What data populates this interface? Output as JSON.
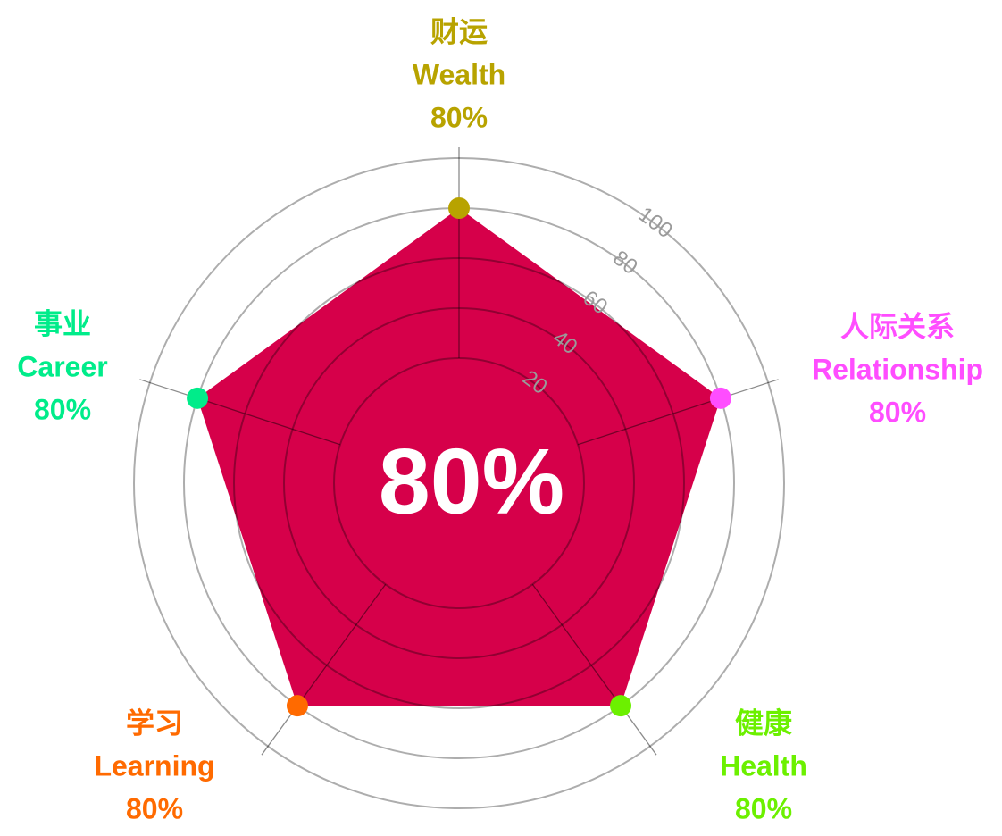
{
  "chart_data": {
    "type": "radar",
    "categories": [
      "Wealth",
      "Relationship",
      "Health",
      "Learning",
      "Career"
    ],
    "categories_zh": [
      "财运",
      "人际关系",
      "健康",
      "学习",
      "事业"
    ],
    "category_colors": [
      "#b8a300",
      "#ff4dff",
      "#6cf000",
      "#ff6a00",
      "#00ec8a"
    ],
    "series": [
      {
        "color": "#d6004a",
        "values": [
          80,
          80,
          80,
          80,
          80
        ],
        "value_labels": [
          "80%",
          "80%",
          "80%",
          "80%",
          "80%"
        ]
      }
    ],
    "rlim": [
      -30,
      100
    ],
    "rticks": [
      20,
      40,
      60,
      80,
      100
    ],
    "grid": true,
    "center_text": "80%"
  }
}
